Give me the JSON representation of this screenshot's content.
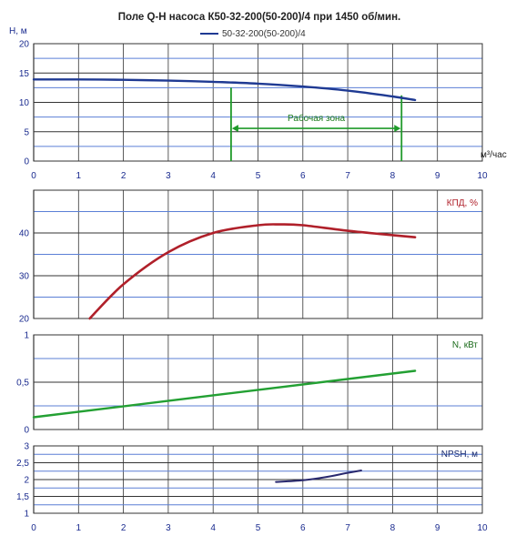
{
  "title": "Поле Q-H насоса К50-32-200(50-200)/4 при 1450 об/мин.",
  "legend": "50-32-200(50-200)/4",
  "x_unit": "м³/час",
  "zone_label": "Рабочая зона",
  "colors": {
    "axis_text": "#1a2b8f",
    "grid": "#333333",
    "hline": "#5b7fd6",
    "head": "#1f3a93",
    "eff": "#b0202a",
    "power": "#23a033",
    "npsh": "#28286e",
    "zone": "#1f9a2a"
  },
  "chart_data": [
    {
      "type": "line",
      "ylabel": "H, м",
      "xlim": [
        0,
        10
      ],
      "ylim": [
        0,
        20
      ],
      "x_ticks": [
        "0",
        "1",
        "2",
        "3",
        "4",
        "5",
        "6",
        "7",
        "8",
        "9",
        "10"
      ],
      "y_ticks": [
        "0",
        "5",
        "10",
        "15",
        "20"
      ],
      "series": [
        {
          "name": "50-32-200(50-200)/4",
          "x": [
            0,
            1,
            2,
            3,
            4,
            5,
            6,
            7,
            8,
            8.5
          ],
          "y": [
            13.9,
            13.9,
            13.85,
            13.7,
            13.5,
            13.2,
            12.7,
            12.0,
            11.0,
            10.4
          ]
        }
      ],
      "working_zone": [
        4.4,
        8.2
      ]
    },
    {
      "type": "line",
      "ylabel": "КПД, %",
      "xlim": [
        0,
        10
      ],
      "ylim": [
        20,
        50
      ],
      "y_ticks": [
        "20",
        "30",
        "40"
      ],
      "series": [
        {
          "x": [
            1.25,
            2,
            3,
            4,
            5,
            5.5,
            6,
            7,
            8,
            8.5
          ],
          "y": [
            20,
            28,
            35.5,
            40,
            41.8,
            42,
            41.8,
            40.5,
            39.5,
            39
          ]
        }
      ]
    },
    {
      "type": "line",
      "ylabel": "N, кВт",
      "xlim": [
        0,
        10
      ],
      "ylim": [
        0,
        1
      ],
      "y_ticks": [
        "0",
        "0,5",
        "1"
      ],
      "series": [
        {
          "x": [
            0,
            8.5
          ],
          "y": [
            0.13,
            0.62
          ]
        }
      ]
    },
    {
      "type": "line",
      "ylabel": "NPSH, м",
      "xlim": [
        0,
        10
      ],
      "ylim": [
        1,
        3
      ],
      "x_ticks": [
        "0",
        "1",
        "2",
        "3",
        "4",
        "5",
        "6",
        "7",
        "8",
        "9",
        "10"
      ],
      "y_ticks": [
        "1",
        "1,5",
        "2",
        "2,5",
        "3"
      ],
      "series": [
        {
          "x": [
            5.4,
            6.0,
            6.5,
            7.0,
            7.3
          ],
          "y": [
            1.93,
            1.98,
            2.07,
            2.2,
            2.27
          ]
        }
      ]
    }
  ]
}
